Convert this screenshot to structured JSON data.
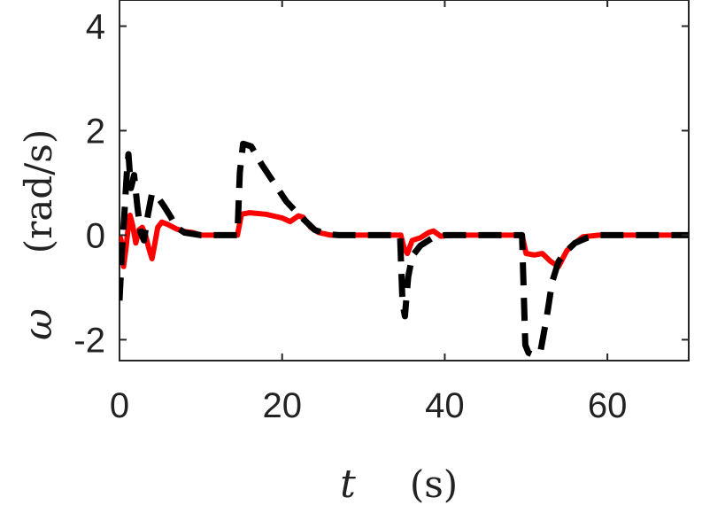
{
  "chart_data": {
    "type": "line",
    "title": "",
    "xlabel": {
      "symbol": "t",
      "unit": "(s)"
    },
    "ylabel": {
      "symbol": "ω",
      "unit": "(rad/s)"
    },
    "xlim": [
      0,
      70
    ],
    "ylim": [
      -2.4,
      4.5
    ],
    "xticks": [
      0,
      20,
      40,
      60
    ],
    "yticks": [
      -2,
      0,
      2,
      4
    ],
    "xtick_labels": [
      "0",
      "20",
      "40",
      "60"
    ],
    "ytick_labels": [
      "-2",
      "0",
      "2",
      "4"
    ],
    "grid": false,
    "legend": "none",
    "series": [
      {
        "color": "#ff0000",
        "style": "solid",
        "points": [
          [
            0,
            0
          ],
          [
            0.2,
            -0.1
          ],
          [
            0.5,
            -0.6
          ],
          [
            0.8,
            -0.25
          ],
          [
            1.0,
            0.05
          ],
          [
            1.3,
            0.38
          ],
          [
            1.6,
            0.2
          ],
          [
            2.0,
            -0.15
          ],
          [
            2.4,
            0.1
          ],
          [
            2.8,
            0.15
          ],
          [
            3.2,
            0.0
          ],
          [
            3.6,
            -0.25
          ],
          [
            4.0,
            -0.45
          ],
          [
            4.3,
            -0.2
          ],
          [
            4.7,
            0.15
          ],
          [
            5.2,
            0.25
          ],
          [
            6.0,
            0.2
          ],
          [
            7.0,
            0.12
          ],
          [
            8.0,
            0.07
          ],
          [
            9.0,
            0.05
          ],
          [
            10.0,
            0.0
          ],
          [
            14.5,
            0.0
          ],
          [
            15.0,
            0.4
          ],
          [
            16.0,
            0.43
          ],
          [
            18.0,
            0.4
          ],
          [
            20.0,
            0.33
          ],
          [
            21.0,
            0.26
          ],
          [
            22.0,
            0.37
          ],
          [
            22.6,
            0.34
          ],
          [
            23.5,
            0.15
          ],
          [
            24.5,
            0.05
          ],
          [
            26.0,
            0.0
          ],
          [
            34.6,
            0.0
          ],
          [
            35.0,
            -0.25
          ],
          [
            35.4,
            -0.35
          ],
          [
            36.0,
            -0.1
          ],
          [
            37.0,
            -0.05
          ],
          [
            38.0,
            0.05
          ],
          [
            38.6,
            0.08
          ],
          [
            39.5,
            -0.02
          ],
          [
            41.0,
            0.0
          ],
          [
            49.5,
            0.0
          ],
          [
            50.0,
            -0.35
          ],
          [
            51.0,
            -0.38
          ],
          [
            52.0,
            -0.35
          ],
          [
            53.0,
            -0.5
          ],
          [
            54.0,
            -0.6
          ],
          [
            55.0,
            -0.3
          ],
          [
            56.0,
            -0.15
          ],
          [
            57.0,
            -0.03
          ],
          [
            59.0,
            0.0
          ],
          [
            70.0,
            0.0
          ]
        ]
      },
      {
        "color": "#000000",
        "style": "dashed",
        "points": [
          [
            0,
            -1.25
          ],
          [
            0.3,
            -0.3
          ],
          [
            0.6,
            0.4
          ],
          [
            0.9,
            1.2
          ],
          [
            1.1,
            1.55
          ],
          [
            1.4,
            0.9
          ],
          [
            1.8,
            1.15
          ],
          [
            2.2,
            0.55
          ],
          [
            2.6,
            0.05
          ],
          [
            3.0,
            -0.1
          ],
          [
            3.5,
            0.4
          ],
          [
            4.0,
            0.8
          ],
          [
            4.6,
            0.75
          ],
          [
            5.5,
            0.55
          ],
          [
            6.3,
            0.35
          ],
          [
            7.0,
            0.15
          ],
          [
            8.0,
            0.05
          ],
          [
            10.0,
            0.0
          ],
          [
            14.5,
            0.0
          ],
          [
            14.8,
            1.2
          ],
          [
            15.2,
            1.75
          ],
          [
            16.2,
            1.7
          ],
          [
            17.5,
            1.35
          ],
          [
            19.0,
            1.0
          ],
          [
            20.5,
            0.65
          ],
          [
            22.0,
            0.4
          ],
          [
            23.0,
            0.25
          ],
          [
            24.0,
            0.1
          ],
          [
            25.5,
            0.02
          ],
          [
            27.0,
            0.0
          ],
          [
            34.5,
            0.0
          ],
          [
            34.8,
            -1.3
          ],
          [
            35.1,
            -1.55
          ],
          [
            35.5,
            -0.8
          ],
          [
            36.0,
            -0.4
          ],
          [
            37.0,
            -0.2
          ],
          [
            38.5,
            -0.05
          ],
          [
            40.0,
            0.0
          ],
          [
            49.5,
            0.0
          ],
          [
            49.9,
            -2.1
          ],
          [
            50.3,
            -2.25
          ],
          [
            51.0,
            -2.3
          ],
          [
            51.8,
            -2.2
          ],
          [
            52.5,
            -1.6
          ],
          [
            53.2,
            -0.9
          ],
          [
            54.0,
            -0.5
          ],
          [
            55.0,
            -0.3
          ],
          [
            56.0,
            -0.15
          ],
          [
            57.5,
            -0.05
          ],
          [
            59.0,
            0.0
          ],
          [
            70.0,
            0.0
          ]
        ]
      }
    ]
  }
}
